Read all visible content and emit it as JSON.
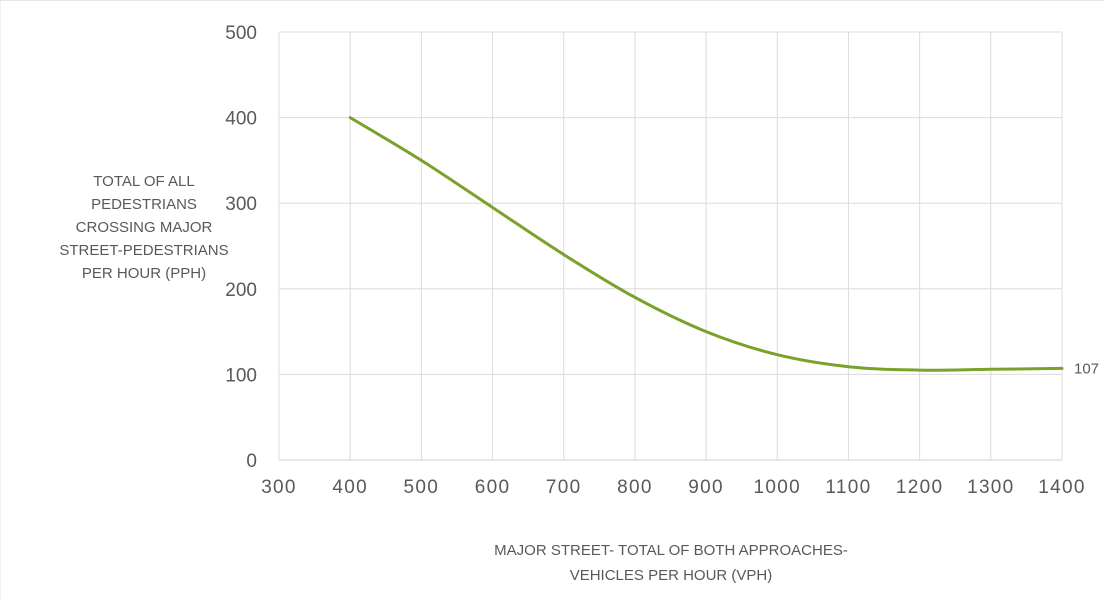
{
  "chart_data": {
    "type": "line",
    "title": "",
    "xlabel": [
      "MAJOR STREET- TOTAL OF BOTH APPROACHES-",
      "VEHICLES PER HOUR (VPH)"
    ],
    "ylabel": [
      "TOTAL OF ALL",
      "PEDESTRIANS",
      "CROSSING MAJOR",
      "STREET-PEDESTRIANS",
      "PER HOUR (PPH)"
    ],
    "xlim": [
      300,
      1400
    ],
    "ylim": [
      0,
      500
    ],
    "xticks": [
      300,
      400,
      500,
      600,
      700,
      800,
      900,
      1000,
      1100,
      1200,
      1300,
      1400
    ],
    "yticks": [
      0,
      100,
      200,
      300,
      400,
      500
    ],
    "grid": true,
    "legend": "none",
    "series": [
      {
        "color": "#7aa22b",
        "x": [
          400,
          500,
          600,
          700,
          800,
          900,
          1000,
          1100,
          1200,
          1300,
          1400
        ],
        "values": [
          400,
          350,
          295,
          240,
          190,
          150,
          123,
          109,
          105,
          106,
          107
        ]
      }
    ],
    "data_labels": [
      {
        "x": 1400,
        "y": 107,
        "text": "107"
      }
    ]
  }
}
